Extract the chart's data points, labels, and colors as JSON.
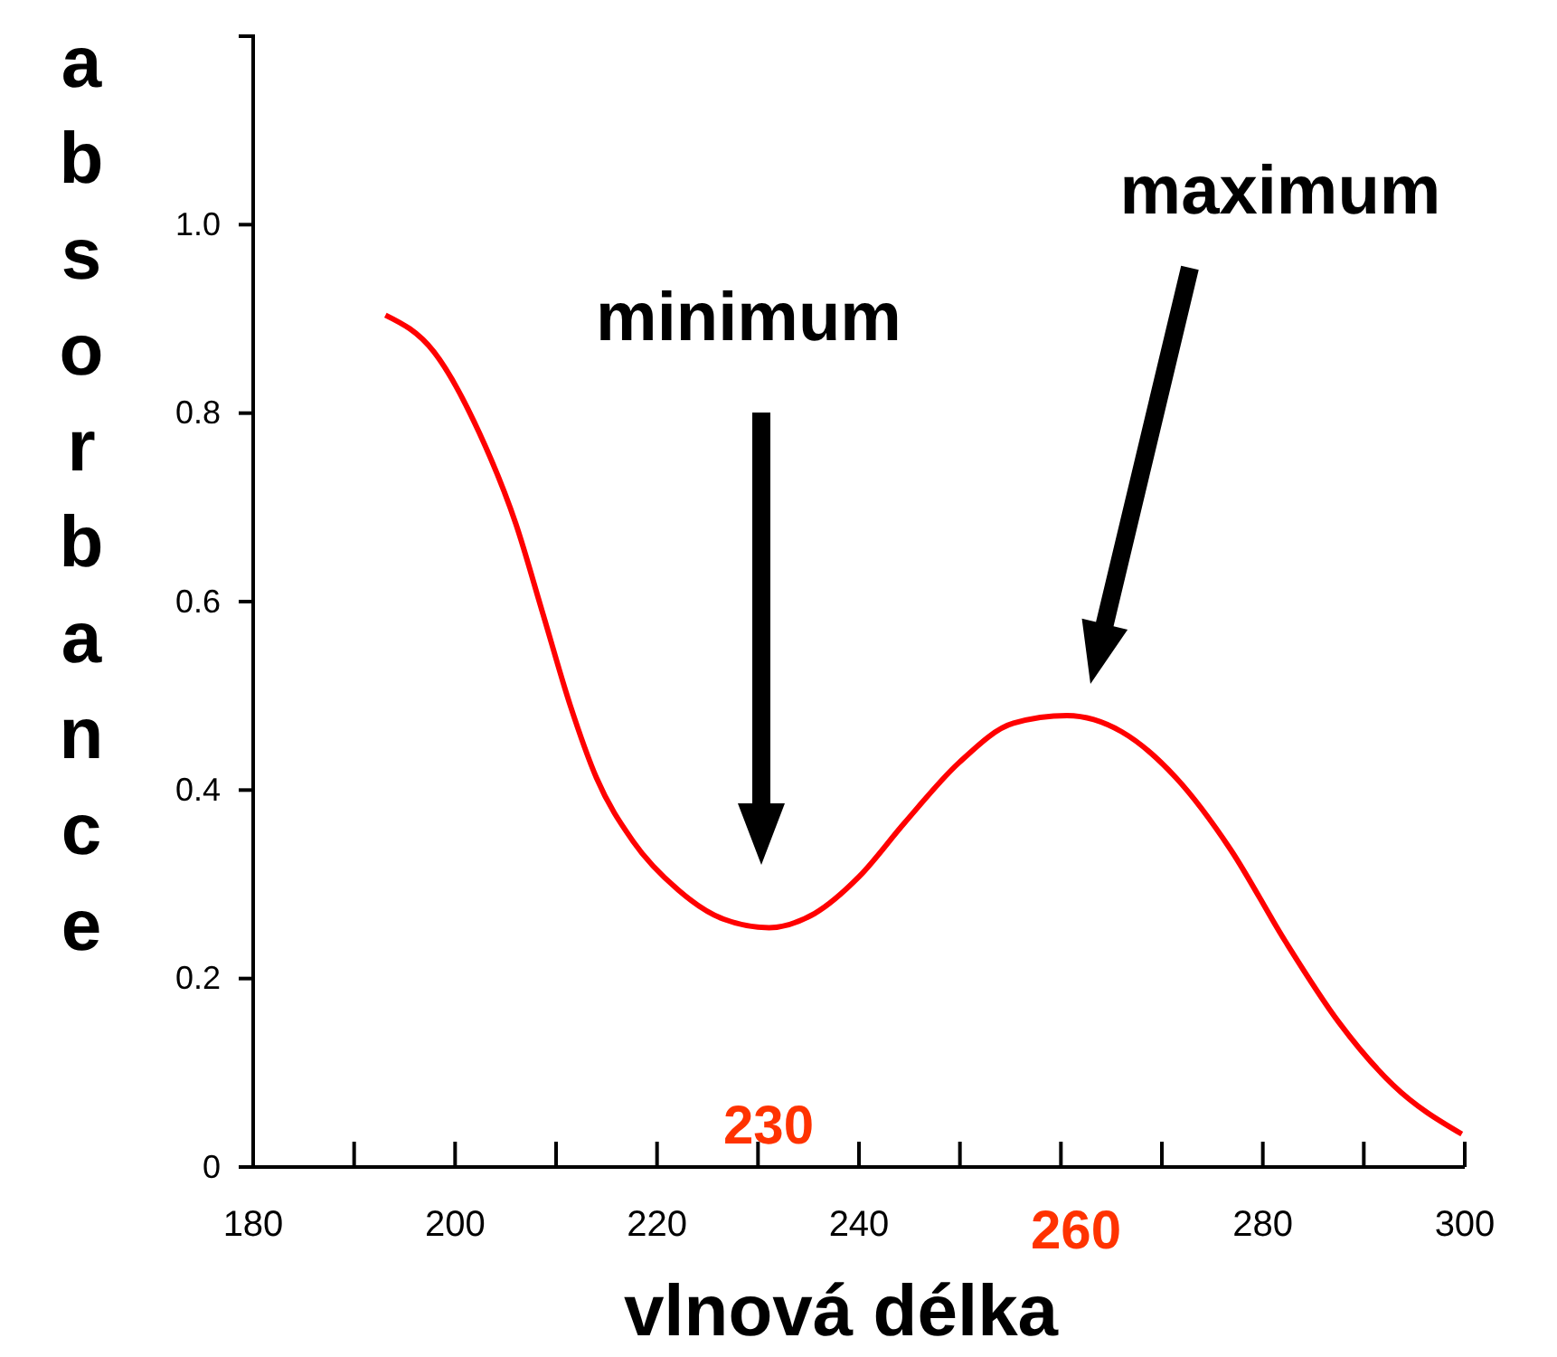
{
  "chart_data": {
    "type": "line",
    "xlabel": "vlnová délka",
    "ylabel": "absorbance",
    "x": [
      193.1,
      197.9,
      202.4,
      206,
      208.7,
      211.4,
      214,
      217.6,
      222.1,
      226.6,
      231.1,
      235.6,
      240,
      244.5,
      249.9,
      255.3,
      260.6,
      266,
      271.4,
      276.8,
      282.2,
      287.5,
      292.9,
      299.7
    ],
    "series": [
      {
        "color": "#ff0000",
        "values": [
          0.904,
          0.865,
          0.779,
          0.683,
          0.587,
          0.49,
          0.413,
          0.346,
          0.294,
          0.263,
          0.254,
          0.269,
          0.308,
          0.365,
          0.429,
          0.471,
          0.479,
          0.462,
          0.413,
          0.337,
          0.24,
          0.154,
          0.087,
          0.035
        ]
      }
    ],
    "xlim": [
      180,
      300
    ],
    "xticks": [
      180,
      {
        "value": 190,
        "label": null
      },
      200,
      {
        "value": 210,
        "label": null
      },
      220,
      {
        "value": 230,
        "label": null
      },
      240,
      {
        "value": 250,
        "label": null
      },
      {
        "value": 260,
        "label": null
      },
      {
        "value": 270,
        "label": null
      },
      280,
      {
        "value": 290,
        "label": null
      },
      300
    ],
    "ylim": [
      0,
      1.2
    ],
    "yticks": [
      0,
      0.2,
      0.4,
      0.6,
      0.8,
      {
        "value": 1.0,
        "label": "1.0"
      },
      {
        "value": 1.2,
        "label": null
      }
    ],
    "grid": false,
    "marker": "none",
    "line_style": "solid",
    "annotations": [
      "minimum",
      "maximum",
      "230",
      "260"
    ]
  }
}
